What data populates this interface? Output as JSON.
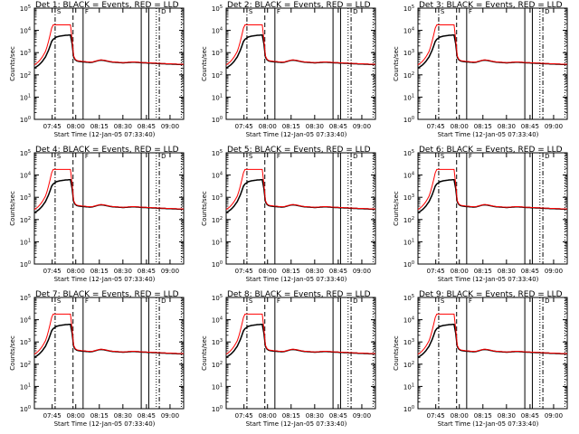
{
  "figure": {
    "x_tick_labels": [
      "07:45",
      "08:00",
      "08:15",
      "08:30",
      "08:45",
      "09:00"
    ],
    "y_tick_labels": [
      {
        "base": "10",
        "exp": "0"
      },
      {
        "base": "10",
        "exp": "1"
      },
      {
        "base": "10",
        "exp": "2"
      },
      {
        "base": "10",
        "exp": "3"
      },
      {
        "base": "10",
        "exp": "4"
      },
      {
        "base": "10",
        "exp": "5"
      }
    ],
    "ylabel": "Counts/sec",
    "xlabel": "Start Time (12-Jan-05 07:33:40)",
    "marker_labels": {
      "S": "S",
      "F": "F",
      "D": "D"
    }
  },
  "chart_data": [
    {
      "type": "line",
      "title": "Det 1: BLACK = Events, RED = LLD",
      "x_time_unit": "minutes after 07:33:40",
      "ylim_log10": [
        0,
        5
      ],
      "xlim_min": [
        0,
        95
      ]
    },
    {
      "type": "line",
      "title": "Det 2: BLACK = Events, RED = LLD",
      "x_time_unit": "minutes after 07:33:40",
      "ylim_log10": [
        0,
        5
      ],
      "xlim_min": [
        0,
        95
      ]
    },
    {
      "type": "line",
      "title": "Det 3: BLACK = Events, RED = LLD",
      "x_time_unit": "minutes after 07:33:40",
      "ylim_log10": [
        0,
        5
      ],
      "xlim_min": [
        0,
        95
      ]
    },
    {
      "type": "line",
      "title": "Det 4: BLACK = Events, RED = LLD",
      "x_time_unit": "minutes after 07:33:40",
      "ylim_log10": [
        0,
        5
      ],
      "xlim_min": [
        0,
        95
      ]
    },
    {
      "type": "line",
      "title": "Det 5: BLACK = Events, RED = LLD",
      "x_time_unit": "minutes after 07:33:40",
      "ylim_log10": [
        0,
        5
      ],
      "xlim_min": [
        0,
        95
      ]
    },
    {
      "type": "line",
      "title": "Det 6: BLACK = Events, RED = LLD",
      "x_time_unit": "minutes after 07:33:40",
      "ylim_log10": [
        0,
        5
      ],
      "xlim_min": [
        0,
        95
      ]
    },
    {
      "type": "line",
      "title": "Det 7: BLACK = Events, RED = LLD",
      "x_time_unit": "minutes after 07:33:40",
      "ylim_log10": [
        0,
        5
      ],
      "xlim_min": [
        0,
        95
      ]
    },
    {
      "type": "line",
      "title": "Det 8: BLACK = Events, RED = LLD",
      "x_time_unit": "minutes after 07:33:40",
      "ylim_log10": [
        0,
        5
      ],
      "xlim_min": [
        0,
        95
      ]
    },
    {
      "type": "line",
      "title": "Det 9: BLACK = Events, RED = LLD",
      "x_time_unit": "minutes after 07:33:40",
      "ylim_log10": [
        0,
        5
      ],
      "xlim_min": [
        0,
        95
      ]
    }
  ],
  "series_template": {
    "x_min": [
      0,
      1,
      2,
      3,
      4,
      5,
      6,
      7,
      8,
      9,
      10,
      11,
      12,
      13,
      14,
      15,
      16,
      17,
      18,
      19,
      20,
      21,
      22,
      23,
      24,
      25,
      26,
      27,
      28,
      29,
      30,
      31,
      32,
      33,
      34,
      35,
      36,
      37,
      38,
      39,
      40,
      41,
      42,
      43,
      44,
      45,
      46,
      47,
      48,
      49,
      50,
      51,
      52,
      53,
      54,
      55,
      56,
      57,
      58,
      59,
      60,
      61,
      62,
      63,
      64,
      65,
      66,
      67,
      68,
      69,
      70,
      71,
      72,
      73,
      74,
      75,
      76,
      77,
      78,
      79,
      80,
      81,
      82,
      83,
      84,
      85,
      86,
      87,
      88,
      89,
      90,
      91,
      92,
      93,
      94,
      95
    ],
    "lld_log10": [
      2.45,
      2.5,
      2.55,
      2.62,
      2.7,
      2.8,
      2.92,
      3.05,
      3.25,
      3.5,
      3.8,
      4.1,
      4.25,
      4.25,
      4.25,
      4.25,
      4.25,
      4.25,
      4.25,
      4.25,
      4.25,
      4.25,
      4.25,
      4.25,
      3.6,
      2.85,
      2.7,
      2.65,
      2.63,
      2.62,
      2.61,
      2.6,
      2.6,
      2.59,
      2.58,
      2.58,
      2.57,
      2.58,
      2.6,
      2.62,
      2.64,
      2.66,
      2.67,
      2.67,
      2.66,
      2.65,
      2.63,
      2.62,
      2.6,
      2.59,
      2.58,
      2.58,
      2.57,
      2.57,
      2.56,
      2.56,
      2.55,
      2.55,
      2.56,
      2.56,
      2.57,
      2.57,
      2.58,
      2.58,
      2.58,
      2.57,
      2.57,
      2.56,
      2.56,
      2.55,
      2.55,
      2.55,
      2.54,
      2.54,
      2.54,
      2.53,
      2.53,
      2.53,
      2.52,
      2.52,
      2.52,
      2.51,
      2.51,
      2.51,
      2.5,
      2.5,
      2.5,
      2.5,
      2.49,
      2.49,
      2.49,
      2.48,
      2.48,
      2.48,
      2.48,
      2.47
    ],
    "events_log10": [
      2.3,
      2.35,
      2.4,
      2.45,
      2.52,
      2.6,
      2.7,
      2.8,
      2.95,
      3.1,
      3.3,
      3.5,
      3.6,
      3.65,
      3.7,
      3.72,
      3.74,
      3.75,
      3.76,
      3.77,
      3.78,
      3.78,
      3.79,
      3.79,
      3.4,
      2.8,
      2.68,
      2.63,
      2.61,
      2.6,
      2.59,
      2.58,
      2.58,
      2.57,
      2.57,
      2.56,
      2.56,
      2.57,
      2.59,
      2.61,
      2.63,
      2.65,
      2.66,
      2.66,
      2.65,
      2.64,
      2.62,
      2.61,
      2.59,
      2.58,
      2.57,
      2.57,
      2.56,
      2.56,
      2.55,
      2.55,
      2.54,
      2.54,
      2.55,
      2.55,
      2.56,
      2.56,
      2.57,
      2.57,
      2.57,
      2.56,
      2.56,
      2.55,
      2.55,
      2.54,
      2.54,
      2.54,
      2.53,
      2.53,
      2.53,
      2.52,
      2.52,
      2.52,
      2.51,
      2.51,
      2.51,
      2.5,
      2.5,
      2.5,
      2.49,
      2.49,
      2.49,
      2.49,
      2.48,
      2.48,
      2.48,
      2.47,
      2.47,
      2.47,
      2.47,
      2.46
    ],
    "vlines": [
      {
        "t": 13.2,
        "style": "dashdot",
        "marker": "S"
      },
      {
        "t": 24.6,
        "style": "dashed",
        "marker": ""
      },
      {
        "t": 31.0,
        "style": "solid",
        "marker": "F"
      },
      {
        "t": 68.0,
        "style": "solid",
        "marker": ""
      },
      {
        "t": 72.8,
        "style": "solid",
        "marker": ""
      },
      {
        "t": 77.6,
        "style": "dotted",
        "marker": ""
      },
      {
        "t": 79.5,
        "style": "dashdot",
        "marker": "D"
      },
      {
        "t": 93.5,
        "style": "dotted",
        "marker": ""
      }
    ],
    "x_tick_minutes": [
      11.33,
      26.33,
      41.33,
      56.33,
      71.33,
      86.33
    ]
  },
  "colors": {
    "events": "#000000",
    "lld": "#ff0000"
  }
}
